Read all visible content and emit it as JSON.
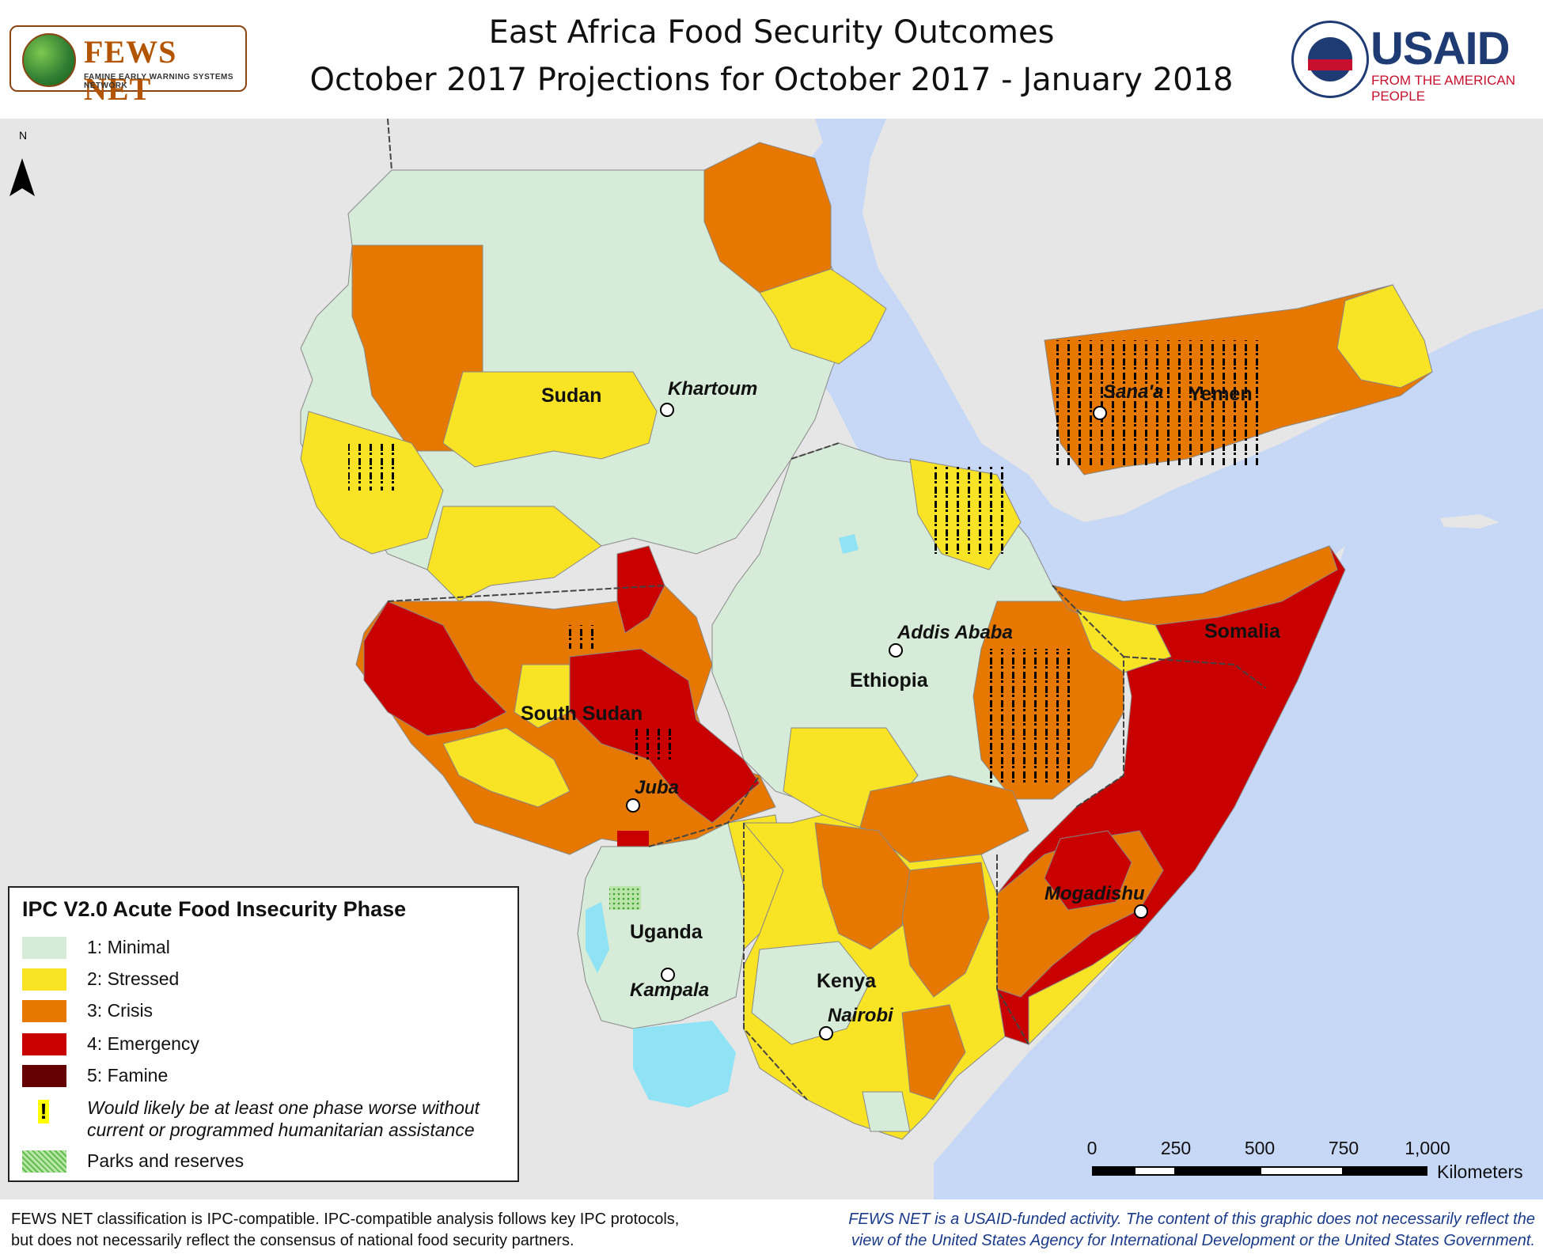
{
  "header": {
    "fews_logo_text": "FEWS NET",
    "fews_logo_subtitle": "FAMINE EARLY WARNING SYSTEMS NETWORK",
    "title_line1": "East Africa Food Security Outcomes",
    "title_line2": "October 2017 Projections for October 2017 - January 2018",
    "usaid_logo_text": "USAID",
    "usaid_logo_subtitle": "FROM THE AMERICAN PEOPLE",
    "seal_text": "USAID"
  },
  "map": {
    "north_arrow": "N",
    "country_labels": [
      "Sudan",
      "South Sudan",
      "Ethiopia",
      "Somalia",
      "Yemen",
      "Uganda",
      "Kenya"
    ],
    "city_labels": [
      "Khartoum",
      "Sana'a",
      "Addis Ababa",
      "Juba",
      "Mogadishu",
      "Kampala",
      "Nairobi"
    ],
    "colors": {
      "phase1": "#d6ecd9",
      "phase2": "#f9e325",
      "phase3": "#e67800",
      "phase4": "#c80000",
      "phase5": "#640000",
      "sea": "#c7d7f6",
      "land_outside": "#e6e6e6",
      "lake": "#8fe3f5"
    }
  },
  "legend": {
    "title": "IPC V2.0 Acute Food Insecurity Phase",
    "items": [
      {
        "label": "1: Minimal",
        "color": "#d6ecd9"
      },
      {
        "label": "2: Stressed",
        "color": "#f9e325"
      },
      {
        "label": "3: Crisis",
        "color": "#e67800"
      },
      {
        "label": "4: Emergency",
        "color": "#c80000"
      },
      {
        "label": "5: Famine",
        "color": "#640000"
      }
    ],
    "assistance_label": "Would likely be at least one phase worse without current or programmed humanitarian assistance",
    "assistance_symbol": "!",
    "parks_label": "Parks and reserves"
  },
  "scale_bar": {
    "ticks": [
      "0",
      "250",
      "500",
      "750",
      "1,000"
    ],
    "unit": "Kilometers"
  },
  "footer": {
    "left_line1": "FEWS NET classification is IPC-compatible. IPC-compatible analysis follows key IPC protocols,",
    "left_line2": "but does not necessarily reflect the consensus of national food security partners.",
    "right_line1": "FEWS NET is a USAID-funded activity. The content of this graphic does not necessarily reflect the",
    "right_line2": "view of the United States Agency for International Development or the United States Government."
  }
}
